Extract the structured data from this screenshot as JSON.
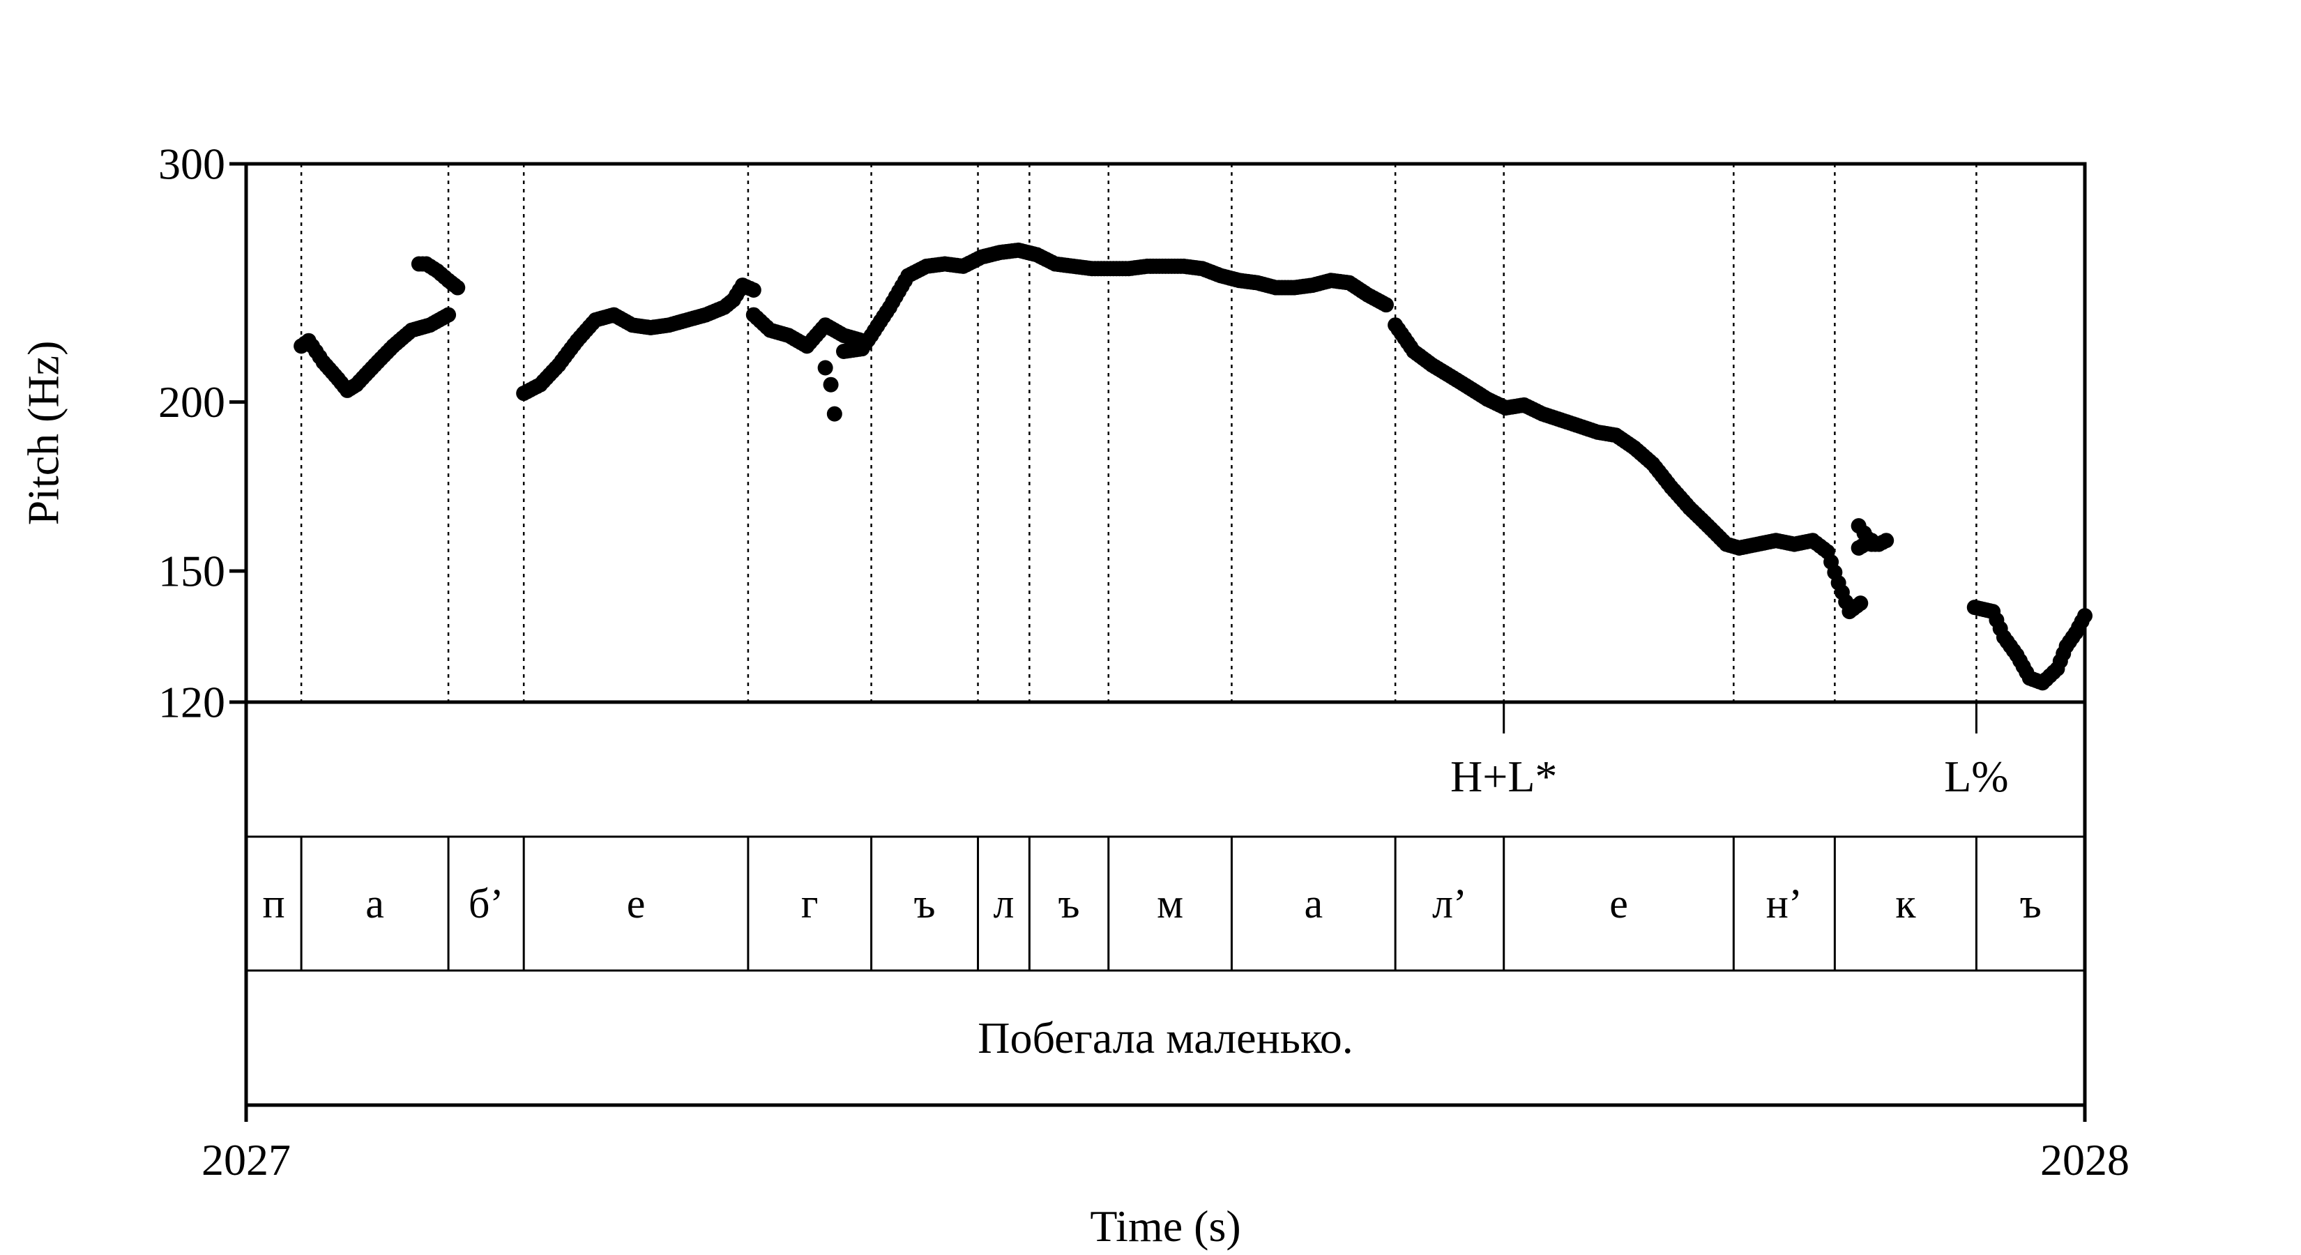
{
  "chart_data": {
    "type": "scatter",
    "xlabel": "Time (s)",
    "ylabel": "Pitch (Hz)",
    "xlim": [
      2027.0,
      2028.0
    ],
    "xticks": [
      "2027",
      "2028"
    ],
    "yticks": [
      120,
      150,
      200,
      300
    ],
    "ylim": [
      120,
      300
    ],
    "yscale": "log",
    "grid": false,
    "boundaries": [
      2027.03,
      2027.11,
      2027.151,
      2027.273,
      2027.34,
      2027.398,
      2027.426,
      2027.469,
      2027.536,
      2027.625,
      2027.684,
      2027.809,
      2027.864,
      2027.941
    ],
    "segments": [
      {
        "label": "п",
        "start": 2027.0,
        "end": 2027.03
      },
      {
        "label": "а",
        "start": 2027.03,
        "end": 2027.11
      },
      {
        "label": "б’",
        "start": 2027.11,
        "end": 2027.151
      },
      {
        "label": "е",
        "start": 2027.151,
        "end": 2027.273
      },
      {
        "label": "г",
        "start": 2027.273,
        "end": 2027.34
      },
      {
        "label": "ъ",
        "start": 2027.34,
        "end": 2027.398
      },
      {
        "label": "л",
        "start": 2027.398,
        "end": 2027.426
      },
      {
        "label": "ъ",
        "start": 2027.426,
        "end": 2027.469
      },
      {
        "label": "м",
        "start": 2027.469,
        "end": 2027.536
      },
      {
        "label": "а",
        "start": 2027.536,
        "end": 2027.625
      },
      {
        "label": "л’",
        "start": 2027.625,
        "end": 2027.684
      },
      {
        "label": "е",
        "start": 2027.684,
        "end": 2027.809
      },
      {
        "label": "н’",
        "start": 2027.809,
        "end": 2027.864
      },
      {
        "label": "к",
        "start": 2027.864,
        "end": 2027.941
      },
      {
        "label": "ъ",
        "start": 2027.941,
        "end": 2028.0
      }
    ],
    "tones": [
      {
        "label": "H+L*",
        "time": 2027.684
      },
      {
        "label": "L%",
        "time": 2027.941
      }
    ],
    "sentence": "Побегала маленько.",
    "pitch_runs": [
      [
        [
          2027.03,
          220
        ],
        [
          2027.034,
          222
        ],
        [
          2027.042,
          214
        ],
        [
          2027.05,
          208
        ],
        [
          2027.055,
          204
        ],
        [
          2027.06,
          206
        ],
        [
          2027.07,
          213
        ],
        [
          2027.08,
          220
        ],
        [
          2027.09,
          226
        ],
        [
          2027.1,
          228
        ],
        [
          2027.11,
          232
        ]
      ],
      [
        [
          2027.094,
          253
        ],
        [
          2027.098,
          253
        ],
        [
          2027.104,
          250
        ],
        [
          2027.11,
          246
        ],
        [
          2027.115,
          243
        ]
      ],
      [
        [
          2027.151,
          203
        ],
        [
          2027.16,
          206
        ],
        [
          2027.17,
          213
        ],
        [
          2027.18,
          222
        ],
        [
          2027.19,
          230
        ],
        [
          2027.2,
          232
        ],
        [
          2027.21,
          228
        ],
        [
          2027.22,
          227
        ],
        [
          2027.23,
          228
        ],
        [
          2027.24,
          230
        ],
        [
          2027.25,
          232
        ],
        [
          2027.26,
          235
        ],
        [
          2027.265,
          238
        ],
        [
          2027.27,
          244
        ],
        [
          2027.276,
          242
        ]
      ],
      [
        [
          2027.276,
          232
        ],
        [
          2027.285,
          226
        ],
        [
          2027.295,
          224
        ],
        [
          2027.305,
          220
        ],
        [
          2027.31,
          224
        ],
        [
          2027.315,
          228
        ],
        [
          2027.325,
          224
        ],
        [
          2027.335,
          222
        ]
      ],
      [
        [
          2027.315,
          212
        ],
        [
          2027.318,
          206
        ],
        [
          2027.32,
          196
        ]
      ],
      [
        [
          2027.325,
          218
        ],
        [
          2027.335,
          219
        ],
        [
          2027.34,
          224
        ],
        [
          2027.35,
          235
        ],
        [
          2027.36,
          248
        ],
        [
          2027.37,
          252
        ],
        [
          2027.38,
          253
        ],
        [
          2027.39,
          252
        ],
        [
          2027.4,
          256
        ],
        [
          2027.41,
          258
        ],
        [
          2027.42,
          259
        ],
        [
          2027.43,
          257
        ],
        [
          2027.44,
          253
        ],
        [
          2027.45,
          252
        ],
        [
          2027.46,
          251
        ],
        [
          2027.47,
          251
        ],
        [
          2027.48,
          251
        ],
        [
          2027.49,
          252
        ],
        [
          2027.5,
          252
        ],
        [
          2027.51,
          252
        ],
        [
          2027.52,
          251
        ],
        [
          2027.53,
          248
        ],
        [
          2027.54,
          246
        ],
        [
          2027.55,
          245
        ],
        [
          2027.56,
          243
        ],
        [
          2027.57,
          243
        ],
        [
          2027.58,
          244
        ],
        [
          2027.59,
          246
        ],
        [
          2027.6,
          245
        ],
        [
          2027.61,
          240
        ],
        [
          2027.62,
          236
        ]
      ],
      [
        [
          2027.625,
          228
        ],
        [
          2027.635,
          218
        ],
        [
          2027.645,
          213
        ],
        [
          2027.655,
          209
        ],
        [
          2027.665,
          205
        ],
        [
          2027.675,
          201
        ],
        [
          2027.685,
          198
        ],
        [
          2027.695,
          199
        ],
        [
          2027.705,
          196
        ],
        [
          2027.715,
          194
        ],
        [
          2027.725,
          192
        ],
        [
          2027.735,
          190
        ],
        [
          2027.745,
          189
        ],
        [
          2027.755,
          185
        ],
        [
          2027.765,
          180
        ],
        [
          2027.775,
          173
        ],
        [
          2027.785,
          167
        ],
        [
          2027.795,
          162
        ],
        [
          2027.805,
          157
        ],
        [
          2027.812,
          156
        ],
        [
          2027.822,
          157
        ],
        [
          2027.832,
          158
        ],
        [
          2027.842,
          157
        ],
        [
          2027.852,
          158
        ],
        [
          2027.86,
          155
        ],
        [
          2027.866,
          147
        ],
        [
          2027.872,
          140
        ],
        [
          2027.878,
          142
        ]
      ],
      [
        [
          2027.877,
          162
        ],
        [
          2027.88,
          160
        ],
        [
          2027.884,
          157
        ],
        [
          2027.888,
          157
        ],
        [
          2027.892,
          158
        ]
      ],
      [
        [
          2027.877,
          156
        ],
        [
          2027.884,
          158
        ]
      ],
      [
        [
          2027.94,
          141
        ],
        [
          2027.95,
          140
        ],
        [
          2027.956,
          134
        ],
        [
          2027.963,
          130
        ],
        [
          2027.97,
          125
        ],
        [
          2027.977,
          124
        ],
        [
          2027.985,
          127
        ],
        [
          2027.99,
          132
        ],
        [
          2027.995,
          135
        ],
        [
          2028.0,
          139
        ]
      ]
    ]
  }
}
